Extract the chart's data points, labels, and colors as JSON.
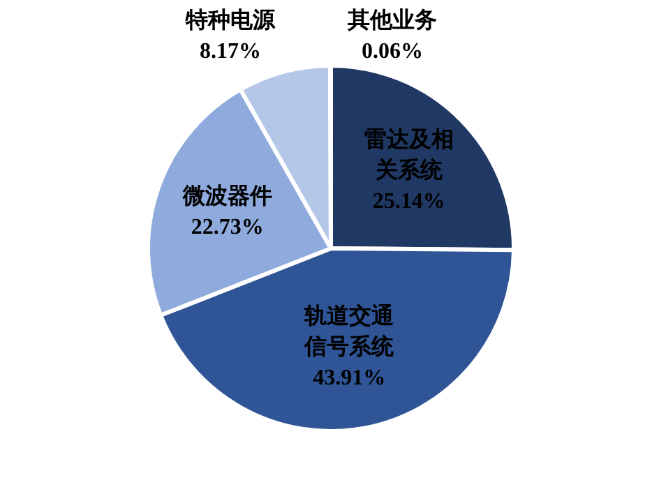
{
  "chart_data": {
    "type": "pie",
    "categories": [
      "雷达及相关系统",
      "轨道交通信号系统",
      "微波器件",
      "特种电源",
      "其他业务"
    ],
    "values": [
      25.14,
      43.91,
      22.73,
      8.17,
      0.06
    ],
    "colors": [
      "#203864",
      "#2f5597",
      "#8faadc",
      "#b4c7e7",
      "#b4c7e7"
    ],
    "value_labels": [
      "25.14%",
      "43.91%",
      "22.73%",
      "8.17%",
      "0.06%"
    ],
    "legend": false
  }
}
